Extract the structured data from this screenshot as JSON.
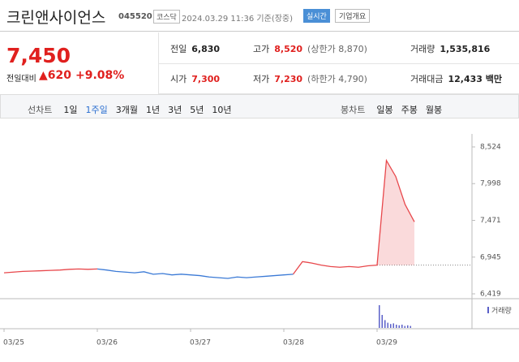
{
  "header": {
    "title": "크린앤사이언스",
    "code": "045520",
    "market": "코스닥",
    "timestamp": "2024.03.29 11:36 기준(장중)",
    "realtime": "실시간",
    "overview": "기업개요"
  },
  "price": {
    "current": "7,450",
    "change_label": "전일대비",
    "change": "▲620",
    "change_rate": "+9.08%"
  },
  "stats": [
    [
      {
        "label": "전일",
        "value": "6,830"
      },
      {
        "label": "고가",
        "value": "8,520",
        "note": "(상한가 8,870)"
      },
      {
        "label": "거래량",
        "value": "1,535,816"
      }
    ],
    [
      {
        "label": "시가",
        "value": "7,300"
      },
      {
        "label": "저가",
        "value": "7,230",
        "note": "(하한가 4,790)"
      },
      {
        "label": "거래대금",
        "value": "12,433 백만"
      }
    ]
  ],
  "tabs": {
    "line_label": "선차트",
    "line": [
      "1일",
      "1주일",
      "3개월",
      "1년",
      "3년",
      "5년",
      "10년"
    ],
    "candle_label": "봉차트",
    "candle": [
      "일봉",
      "주봉",
      "월봉"
    ]
  },
  "chart_data": {
    "type": "line",
    "x": [
      "03/25",
      null,
      null,
      null,
      null,
      null,
      null,
      null,
      null,
      null,
      "03/26",
      null,
      null,
      null,
      null,
      null,
      null,
      null,
      null,
      null,
      "03/27",
      null,
      null,
      null,
      null,
      null,
      null,
      null,
      null,
      null,
      "03/28",
      null,
      null,
      null,
      null,
      null,
      null,
      null,
      null,
      null,
      "03/29",
      null,
      null,
      null,
      null
    ],
    "series": [
      {
        "color": "#e8474b",
        "values": [
          6720,
          6730,
          6740,
          6745,
          6750,
          6755,
          6760,
          6770,
          6775,
          6770,
          6775,
          null,
          null,
          null,
          null,
          null,
          null,
          null,
          null,
          null,
          null,
          null,
          null,
          null,
          null,
          null,
          null,
          null,
          null,
          null,
          null,
          6700,
          6880,
          6860,
          6830,
          6810,
          6800,
          6810,
          6800,
          6820,
          6830,
          8330,
          8100,
          7700,
          7450
        ]
      },
      {
        "color": "#3b7ad6",
        "values": [
          null,
          null,
          null,
          null,
          null,
          null,
          null,
          null,
          null,
          null,
          6775,
          6760,
          6740,
          6730,
          6720,
          6735,
          6700,
          6710,
          6690,
          6700,
          6690,
          6680,
          6660,
          6650,
          6640,
          6660,
          6650,
          6660,
          6670,
          6680,
          6690,
          6700,
          null,
          null,
          null,
          null,
          null,
          null,
          null,
          null,
          null,
          null,
          null,
          null,
          null
        ]
      }
    ],
    "baseline": 6830,
    "ylim": [
      6419,
      8524
    ],
    "yticks": [
      {
        "value": 8524,
        "label": "8,524"
      },
      {
        "value": 7998,
        "label": "7,998"
      },
      {
        "value": 7471,
        "label": "7,471"
      },
      {
        "value": 6945,
        "label": "6,945"
      },
      {
        "value": 6419,
        "label": "6,419"
      }
    ],
    "volume": {
      "label": "거래량",
      "color": "#5a5fc8",
      "ylim": [
        0,
        40
      ],
      "values": [
        35,
        20,
        12,
        8,
        6,
        7,
        5,
        4,
        5,
        3,
        4,
        3
      ]
    }
  }
}
